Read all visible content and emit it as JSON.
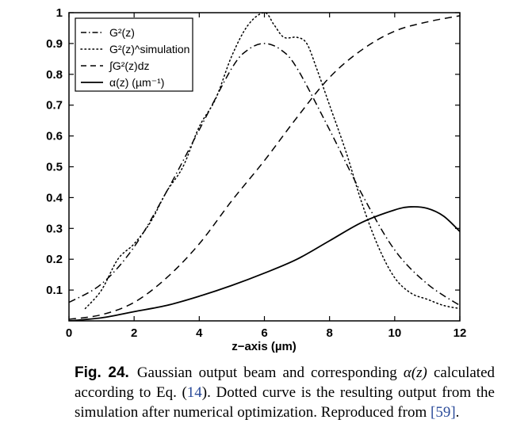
{
  "chart_data": {
    "type": "line",
    "title": "",
    "xlabel": "z−axis (µm)",
    "ylabel": "",
    "xlim": [
      0,
      12
    ],
    "ylim": [
      0,
      1
    ],
    "xticks": [
      "0",
      "2",
      "4",
      "6",
      "8",
      "10",
      "12"
    ],
    "yticks": [
      "0.1",
      "0.2",
      "0.3",
      "0.4",
      "0.5",
      "0.6",
      "0.7",
      "0.8",
      "0.9",
      "1"
    ],
    "legend_position": "top-left",
    "grid": false,
    "series": [
      {
        "name": "G²(z)",
        "style": "dash-dot",
        "x": [
          0,
          1,
          2,
          3,
          4,
          5,
          5.5,
          6,
          6.5,
          7,
          8,
          9,
          10,
          11,
          12
        ],
        "y": [
          0.06,
          0.12,
          0.24,
          0.42,
          0.62,
          0.82,
          0.88,
          0.9,
          0.88,
          0.82,
          0.62,
          0.41,
          0.23,
          0.12,
          0.05
        ]
      },
      {
        "name": "G²(z)^simulation",
        "style": "dotted",
        "x": [
          0.5,
          1,
          1.5,
          2,
          2.5,
          3,
          3.5,
          4,
          4.5,
          5,
          5.5,
          6,
          6.3,
          6.6,
          7,
          7.3,
          7.6,
          8,
          8.5,
          9,
          9.5,
          10,
          10.5,
          11,
          11.5,
          12
        ],
        "y": [
          0.04,
          0.1,
          0.2,
          0.25,
          0.32,
          0.42,
          0.5,
          0.63,
          0.72,
          0.86,
          0.96,
          1.0,
          0.96,
          0.92,
          0.92,
          0.9,
          0.82,
          0.7,
          0.55,
          0.38,
          0.24,
          0.14,
          0.09,
          0.07,
          0.05,
          0.04
        ]
      },
      {
        "name": "∫G²(z)dz",
        "style": "dashed",
        "x": [
          0,
          1,
          2,
          3,
          4,
          5,
          6,
          7,
          8,
          9,
          10,
          11,
          12
        ],
        "y": [
          0.005,
          0.02,
          0.06,
          0.14,
          0.25,
          0.39,
          0.52,
          0.66,
          0.79,
          0.88,
          0.94,
          0.97,
          0.99
        ]
      },
      {
        "name": "α(z) (µm⁻¹)",
        "style": "solid",
        "x": [
          0,
          1,
          2,
          3,
          4,
          5,
          6,
          7,
          8,
          9,
          10,
          10.5,
          11,
          11.5,
          12
        ],
        "y": [
          0.0,
          0.01,
          0.03,
          0.05,
          0.08,
          0.115,
          0.155,
          0.2,
          0.26,
          0.32,
          0.36,
          0.37,
          0.365,
          0.34,
          0.29
        ]
      }
    ]
  },
  "caption": {
    "label": "Fig. 24.",
    "text_before_math": "Gaussian output beam and corresponding ",
    "math": "α(z)",
    "text_mid": " calculated according to Eq. (",
    "eq_ref": "14",
    "text_mid2": "). Dotted curve is the resulting output from the simulation after numerical optimization. Reproduced from ",
    "cite_ref": "[59]",
    "text_end": "."
  }
}
